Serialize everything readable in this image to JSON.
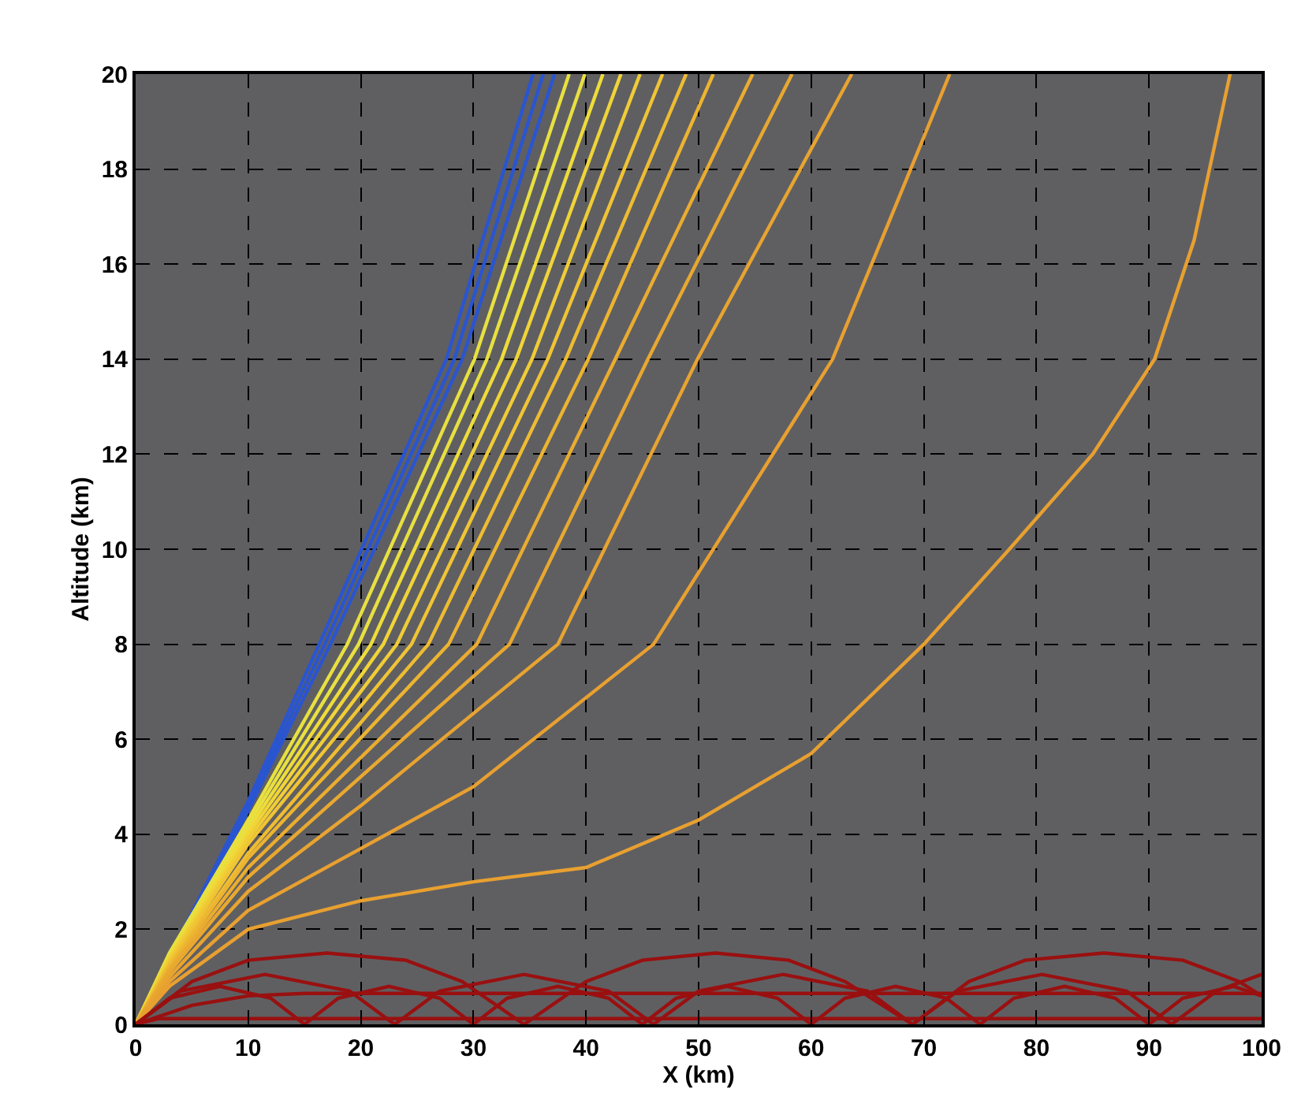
{
  "chart_data": {
    "type": "line",
    "xlabel": "X (km)",
    "ylabel": "Altitude (km)",
    "xlim": [
      0,
      100
    ],
    "ylim": [
      0,
      20
    ],
    "xticks": [
      0,
      10,
      20,
      30,
      40,
      50,
      60,
      70,
      80,
      90,
      100
    ],
    "yticks": [
      0,
      2,
      4,
      6,
      8,
      10,
      12,
      14,
      16,
      18,
      20
    ],
    "grid": true,
    "marker": "none",
    "line_style": "solid",
    "series": [
      {
        "color": "#2a55d0",
        "x": [
          0,
          10,
          16.3,
          27.6,
          35.3
        ],
        "values": [
          0,
          4.7,
          8,
          14,
          20
        ]
      },
      {
        "color": "#2a55d0",
        "x": [
          0,
          10,
          16.8,
          28.3,
          36.2
        ],
        "values": [
          0,
          4.6,
          8,
          14,
          20
        ]
      },
      {
        "color": "#2a55d0",
        "x": [
          0,
          10,
          17.3,
          29,
          37.2
        ],
        "values": [
          0,
          4.5,
          8,
          14,
          20
        ]
      },
      {
        "color": "#e8e040",
        "x": [
          0,
          3,
          10,
          18.8,
          30.1,
          38.5
        ],
        "values": [
          0,
          1.5,
          4.3,
          8,
          14,
          20
        ]
      },
      {
        "color": "#e8e040",
        "x": [
          0,
          3,
          10,
          19.8,
          31.2,
          39.9
        ],
        "values": [
          0,
          1.45,
          4.2,
          8,
          14,
          20
        ]
      },
      {
        "color": "#eedc3a",
        "x": [
          0,
          3,
          10,
          20.9,
          32.5,
          41.5
        ],
        "values": [
          0,
          1.4,
          4.1,
          8,
          14,
          20
        ]
      },
      {
        "color": "#f0d438",
        "x": [
          0,
          3,
          10,
          22,
          33.8,
          43.1
        ],
        "values": [
          0,
          1.4,
          4,
          8,
          14,
          20
        ]
      },
      {
        "color": "#f0cc36",
        "x": [
          0,
          3,
          10,
          23.2,
          35.2,
          44.8
        ],
        "values": [
          0,
          1.35,
          3.9,
          8,
          14,
          20
        ]
      },
      {
        "color": "#f0c434",
        "x": [
          0,
          3,
          10,
          24.5,
          36.6,
          46.8
        ],
        "values": [
          0,
          1.3,
          3.8,
          8,
          14,
          20
        ]
      },
      {
        "color": "#eebc32",
        "x": [
          0,
          3,
          10,
          26,
          38.2,
          48.9
        ],
        "values": [
          0,
          1.25,
          3.6,
          8,
          14,
          20
        ]
      },
      {
        "color": "#ecb430",
        "x": [
          0,
          3,
          10,
          27.8,
          40.2,
          51.3
        ],
        "values": [
          0,
          1.2,
          3.5,
          8,
          14,
          20
        ]
      },
      {
        "color": "#eaac30",
        "x": [
          0,
          3,
          10,
          30.3,
          42.6,
          54.8
        ],
        "values": [
          0,
          1.15,
          3.3,
          8,
          14,
          20
        ]
      },
      {
        "color": "#e8a830",
        "x": [
          0,
          3,
          10,
          33.2,
          45.5,
          58.3
        ],
        "values": [
          0,
          1.1,
          3.1,
          8,
          14,
          20
        ]
      },
      {
        "color": "#e8a430",
        "x": [
          0,
          3,
          10,
          20,
          37.5,
          49.9,
          63.6
        ],
        "values": [
          0,
          1,
          2.8,
          4.6,
          8,
          14,
          20
        ]
      },
      {
        "color": "#e8a030",
        "x": [
          0,
          3,
          10,
          20,
          30,
          46,
          61.9,
          72.3
        ],
        "values": [
          0,
          0.9,
          2.4,
          3.7,
          5,
          8,
          14,
          20
        ]
      },
      {
        "color": "#e8a030",
        "x": [
          0,
          3,
          10,
          20,
          30,
          40,
          50,
          60,
          70,
          77.6,
          85,
          90.5,
          94,
          97.2
        ],
        "values": [
          0,
          0.8,
          2,
          2.6,
          3,
          3.3,
          4.3,
          5.7,
          8,
          10,
          12,
          14,
          16.5,
          20
        ]
      },
      {
        "color": "#9a1010",
        "x": [
          0,
          5,
          10,
          17,
          24,
          29,
          34.5,
          40,
          45,
          51.5,
          58,
          63,
          69,
          74,
          79,
          86,
          93,
          98,
          100
        ],
        "values": [
          0,
          0.9,
          1.35,
          1.5,
          1.35,
          0.9,
          0,
          0.9,
          1.35,
          1.5,
          1.35,
          0.9,
          0,
          0.9,
          1.35,
          1.5,
          1.35,
          0.9,
          0.6
        ]
      },
      {
        "color": "#9a1010",
        "x": [
          0,
          4,
          11.5,
          19,
          23,
          27,
          34.5,
          42,
          46,
          50,
          57.5,
          65,
          69,
          73,
          80.5,
          88,
          92,
          96,
          100
        ],
        "values": [
          0,
          0.7,
          1.05,
          0.7,
          0,
          0.7,
          1.05,
          0.7,
          0,
          0.7,
          1.05,
          0.7,
          0,
          0.7,
          1.05,
          0.7,
          0,
          0.7,
          1.05
        ]
      },
      {
        "color": "#9a1010",
        "x": [
          0,
          5,
          10,
          15,
          100
        ],
        "values": [
          0,
          0.4,
          0.6,
          0.65,
          0.65
        ]
      },
      {
        "color": "#9a1010",
        "x": [
          0,
          3,
          7.5,
          12,
          15,
          18,
          22.5,
          27,
          30,
          33,
          37.5,
          42,
          45,
          48,
          52.5,
          57,
          60,
          63,
          67.5,
          72,
          75,
          78,
          82.5,
          87,
          90,
          93,
          97.5,
          100
        ],
        "values": [
          0,
          0.55,
          0.8,
          0.55,
          0,
          0.55,
          0.8,
          0.55,
          0,
          0.55,
          0.8,
          0.55,
          0,
          0.55,
          0.8,
          0.55,
          0,
          0.55,
          0.8,
          0.55,
          0,
          0.55,
          0.8,
          0.55,
          0,
          0.55,
          0.8,
          0.6
        ]
      },
      {
        "color": "#9a1010",
        "x": [
          0,
          2,
          100
        ],
        "values": [
          0,
          0.12,
          0.12
        ]
      }
    ]
  }
}
